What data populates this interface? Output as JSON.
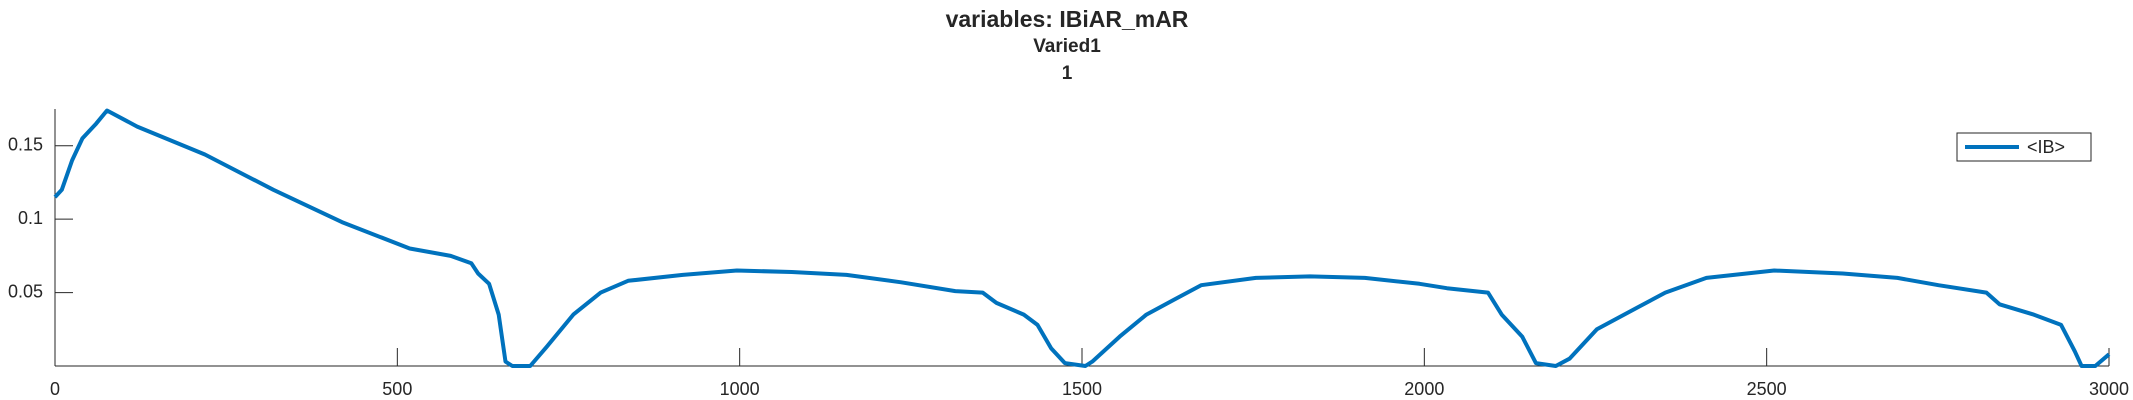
{
  "chart_data": {
    "type": "line",
    "title": "variables: IBiAR_mAR",
    "subtitle": "Varied1",
    "subtitle2": "1",
    "x": [
      0,
      10,
      25,
      40,
      60,
      76,
      120,
      219,
      319,
      419,
      518,
      578,
      608,
      618,
      634,
      648,
      658,
      668,
      694,
      718,
      757,
      797,
      837,
      917,
      996,
      1076,
      1156,
      1236,
      1315,
      1355,
      1375,
      1415,
      1435,
      1455,
      1475,
      1505,
      1515,
      1555,
      1594,
      1634,
      1674,
      1754,
      1833,
      1913,
      1993,
      2033,
      2093,
      2113,
      2143,
      2163,
      2192,
      2212,
      2252,
      2312,
      2352,
      2412,
      2511,
      2611,
      2691,
      2751,
      2821,
      2840,
      2890,
      2930,
      2950,
      2960,
      2980,
      3000
    ],
    "series": [
      {
        "name": "<IB>",
        "color": "#0072bd",
        "values": [
          0.115,
          0.12,
          0.14,
          0.155,
          0.165,
          0.174,
          0.163,
          0.144,
          0.12,
          0.098,
          0.08,
          0.075,
          0.07,
          0.063,
          0.056,
          0.035,
          0.003,
          0.0,
          0.0,
          0.013,
          0.035,
          0.05,
          0.058,
          0.062,
          0.065,
          0.064,
          0.062,
          0.057,
          0.051,
          0.05,
          0.043,
          0.035,
          0.028,
          0.012,
          0.002,
          0.0,
          0.003,
          0.02,
          0.035,
          0.045,
          0.055,
          0.06,
          0.061,
          0.06,
          0.056,
          0.053,
          0.05,
          0.035,
          0.02,
          0.002,
          0.0,
          0.005,
          0.025,
          0.04,
          0.05,
          0.06,
          0.065,
          0.063,
          0.06,
          0.055,
          0.05,
          0.042,
          0.035,
          0.028,
          0.01,
          0.0,
          0.0,
          0.008
        ]
      }
    ],
    "xlim": [
      0,
      3000
    ],
    "xticks": [
      0,
      500,
      1000,
      1500,
      2000,
      2500,
      3000
    ],
    "ylim": [
      0,
      0.175
    ],
    "yticks": [
      0.05,
      0.1,
      0.15
    ],
    "legend": "upper right",
    "grid": false
  }
}
